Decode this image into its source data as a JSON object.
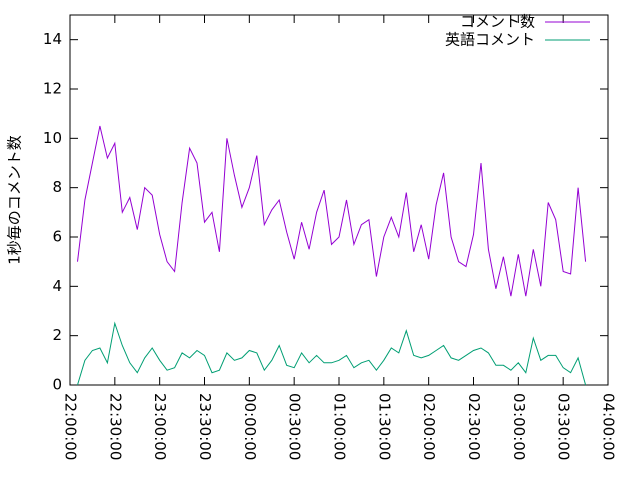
{
  "chart_data": {
    "type": "line",
    "y_label": "1秒毎のコメント数",
    "x": [
      "22:05:00",
      "22:10:00",
      "22:15:00",
      "22:20:00",
      "22:25:00",
      "22:30:00",
      "22:35:00",
      "22:40:00",
      "22:45:00",
      "22:50:00",
      "22:55:00",
      "23:00:00",
      "23:05:00",
      "23:10:00",
      "23:15:00",
      "23:20:00",
      "23:25:00",
      "23:30:00",
      "23:35:00",
      "23:40:00",
      "23:45:00",
      "23:50:00",
      "23:55:00",
      "00:00:00",
      "00:05:00",
      "00:10:00",
      "00:15:00",
      "00:20:00",
      "00:25:00",
      "00:30:00",
      "00:35:00",
      "00:40:00",
      "00:45:00",
      "00:50:00",
      "00:55:00",
      "01:00:00",
      "01:05:00",
      "01:10:00",
      "01:15:00",
      "01:20:00",
      "01:25:00",
      "01:30:00",
      "01:35:00",
      "01:40:00",
      "01:45:00",
      "01:50:00",
      "01:55:00",
      "02:00:00",
      "02:05:00",
      "02:10:00",
      "02:15:00",
      "02:20:00",
      "02:25:00",
      "02:30:00",
      "02:35:00",
      "02:40:00",
      "02:45:00",
      "02:50:00",
      "02:55:00",
      "03:00:00",
      "03:05:00",
      "03:10:00",
      "03:15:00",
      "03:20:00",
      "03:25:00",
      "03:30:00",
      "03:35:00",
      "03:40:00",
      "03:45:00"
    ],
    "series": [
      {
        "name": "コメント数",
        "color": "#9400d3",
        "values": [
          5.0,
          7.5,
          9.0,
          10.5,
          9.2,
          9.8,
          7.0,
          7.6,
          6.3,
          8.0,
          7.7,
          6.1,
          5.0,
          4.6,
          7.4,
          9.6,
          9.0,
          6.6,
          7.0,
          5.4,
          10.0,
          8.5,
          7.2,
          8.0,
          9.3,
          6.5,
          7.1,
          7.5,
          6.2,
          5.1,
          6.6,
          5.5,
          7.0,
          7.9,
          5.7,
          6.0,
          7.5,
          5.7,
          6.5,
          6.7,
          4.4,
          6.0,
          6.8,
          6.0,
          7.8,
          5.4,
          6.5,
          5.1,
          7.3,
          8.6,
          6.0,
          5.0,
          4.8,
          6.1,
          9.0,
          5.5,
          3.9,
          5.2,
          3.6,
          5.3,
          3.6,
          5.5,
          4.0,
          7.4,
          6.7,
          4.6,
          4.5,
          8.0,
          5.0
        ]
      },
      {
        "name": "英語コメント",
        "color": "#009e73",
        "values": [
          0.0,
          1.0,
          1.4,
          1.5,
          0.9,
          2.5,
          1.6,
          0.9,
          0.5,
          1.1,
          1.5,
          1.0,
          0.6,
          0.7,
          1.3,
          1.1,
          1.4,
          1.2,
          0.5,
          0.6,
          1.3,
          1.0,
          1.1,
          1.4,
          1.3,
          0.6,
          1.0,
          1.6,
          0.8,
          0.7,
          1.3,
          0.9,
          1.2,
          0.9,
          0.9,
          1.0,
          1.2,
          0.7,
          0.9,
          1.0,
          0.6,
          1.0,
          1.5,
          1.3,
          2.2,
          1.2,
          1.1,
          1.2,
          1.4,
          1.6,
          1.1,
          1.0,
          1.2,
          1.4,
          1.5,
          1.3,
          0.8,
          0.8,
          0.6,
          0.9,
          0.5,
          1.9,
          1.0,
          1.2,
          1.2,
          0.7,
          0.5,
          1.1,
          0.0
        ]
      }
    ],
    "xlim": [
      "22:00:00",
      "04:00:00"
    ],
    "xticks": [
      "22:00:00",
      "22:30:00",
      "23:00:00",
      "23:30:00",
      "00:00:00",
      "00:30:00",
      "01:00:00",
      "01:30:00",
      "02:00:00",
      "02:30:00",
      "03:00:00",
      "03:30:00",
      "04:00:00"
    ],
    "ylim": [
      0,
      15
    ],
    "yticks": [
      0,
      2,
      4,
      6,
      8,
      10,
      12,
      14
    ],
    "legend": "top-right"
  }
}
